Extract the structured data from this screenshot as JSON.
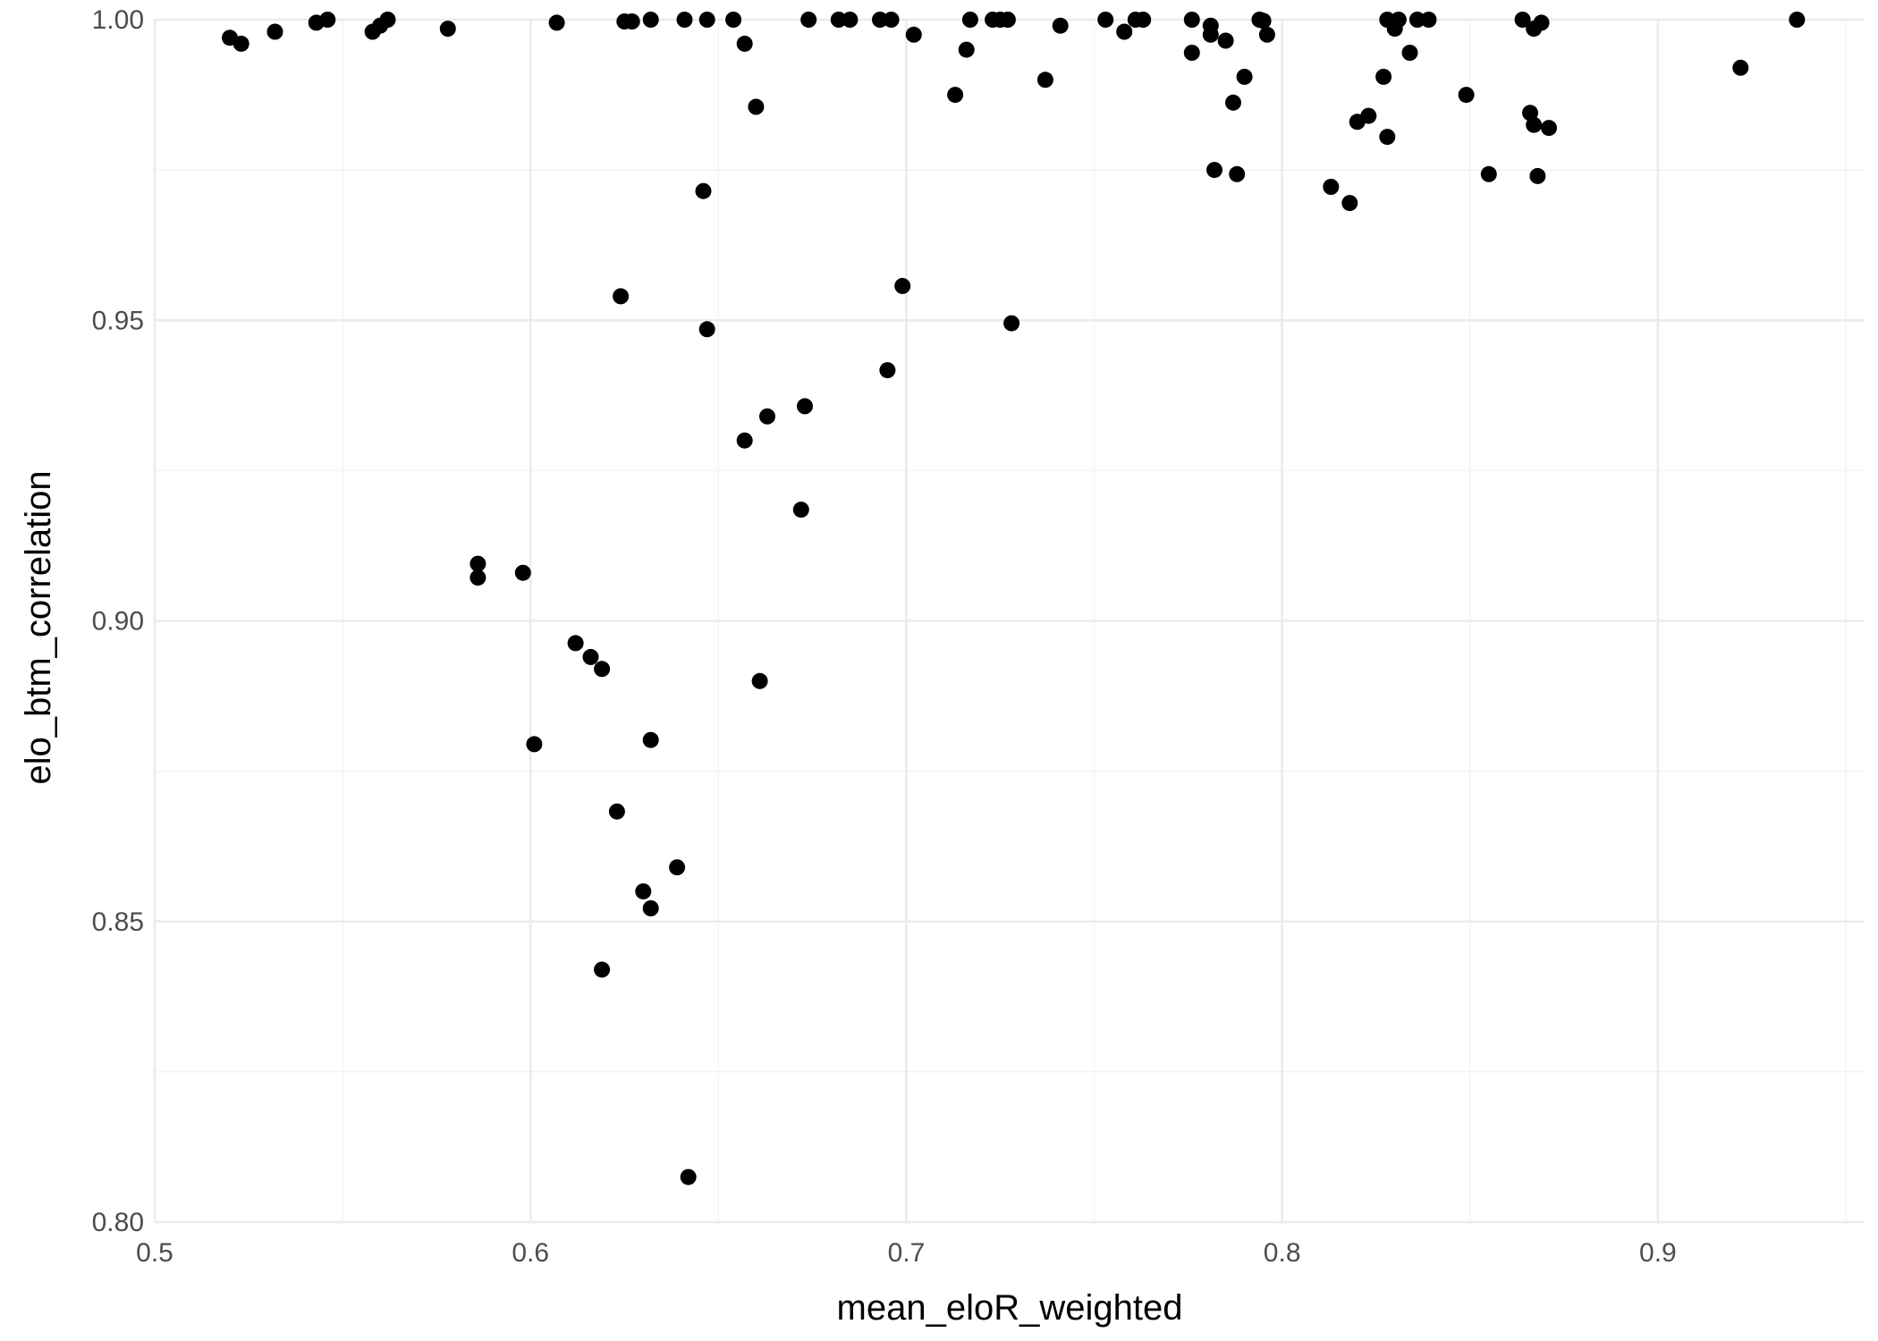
{
  "chart_data": {
    "type": "scatter",
    "title": "",
    "xlabel": "mean_eloR_weighted",
    "ylabel": "elo_btm_correlation",
    "xlim": [
      0.5,
      0.955
    ],
    "ylim": [
      0.8,
      1.0
    ],
    "x_ticks": [
      0.5,
      0.6,
      0.7,
      0.8,
      0.9
    ],
    "x_tick_labels": [
      "0.5",
      "0.6",
      "0.7",
      "0.8",
      "0.9"
    ],
    "y_ticks": [
      0.8,
      0.85,
      0.9,
      0.95,
      1.0
    ],
    "y_tick_labels": [
      "0.80",
      "0.85",
      "0.90",
      "0.95",
      "1.00"
    ],
    "grid": true,
    "legend": "none",
    "point_color": "#000000",
    "points": [
      [
        0.52,
        0.997
      ],
      [
        0.523,
        0.996
      ],
      [
        0.532,
        0.998
      ],
      [
        0.543,
        0.9995
      ],
      [
        0.546,
        1.0
      ],
      [
        0.558,
        0.998
      ],
      [
        0.56,
        0.999
      ],
      [
        0.562,
        1.0
      ],
      [
        0.578,
        0.9985
      ],
      [
        0.607,
        0.9995
      ],
      [
        0.625,
        0.9997
      ],
      [
        0.627,
        0.9997
      ],
      [
        0.632,
        1.0
      ],
      [
        0.641,
        1.0
      ],
      [
        0.647,
        1.0
      ],
      [
        0.654,
        1.0
      ],
      [
        0.657,
        0.996
      ],
      [
        0.66,
        0.9855
      ],
      [
        0.674,
        1.0
      ],
      [
        0.682,
        1.0
      ],
      [
        0.685,
        1.0
      ],
      [
        0.693,
        1.0
      ],
      [
        0.696,
        1.0
      ],
      [
        0.702,
        0.9975
      ],
      [
        0.713,
        0.9875
      ],
      [
        0.716,
        0.995
      ],
      [
        0.717,
        1.0
      ],
      [
        0.723,
        1.0
      ],
      [
        0.725,
        1.0
      ],
      [
        0.727,
        1.0
      ],
      [
        0.737,
        0.99
      ],
      [
        0.741,
        0.999
      ],
      [
        0.753,
        1.0
      ],
      [
        0.758,
        0.998
      ],
      [
        0.761,
        1.0
      ],
      [
        0.763,
        1.0
      ],
      [
        0.776,
        1.0
      ],
      [
        0.776,
        0.9945
      ],
      [
        0.781,
        0.999
      ],
      [
        0.781,
        0.9975
      ],
      [
        0.782,
        0.975
      ],
      [
        0.785,
        0.9965
      ],
      [
        0.787,
        0.9862
      ],
      [
        0.788,
        0.9743
      ],
      [
        0.79,
        0.9905
      ],
      [
        0.794,
        1.0
      ],
      [
        0.795,
        0.9998
      ],
      [
        0.796,
        0.9975
      ],
      [
        0.813,
        0.9722
      ],
      [
        0.818,
        0.9695
      ],
      [
        0.82,
        0.983
      ],
      [
        0.823,
        0.984
      ],
      [
        0.827,
        0.9905
      ],
      [
        0.828,
        0.9805
      ],
      [
        0.828,
        1.0
      ],
      [
        0.83,
        0.9985
      ],
      [
        0.831,
        1.0
      ],
      [
        0.834,
        0.9945
      ],
      [
        0.836,
        1.0
      ],
      [
        0.839,
        1.0
      ],
      [
        0.849,
        0.9875
      ],
      [
        0.855,
        0.9743
      ],
      [
        0.864,
        1.0
      ],
      [
        0.866,
        0.9845
      ],
      [
        0.867,
        0.9825
      ],
      [
        0.867,
        0.9985
      ],
      [
        0.868,
        0.974
      ],
      [
        0.869,
        0.9995
      ],
      [
        0.871,
        0.982
      ],
      [
        0.922,
        0.992
      ],
      [
        0.937,
        1.0
      ],
      [
        0.646,
        0.9715
      ],
      [
        0.624,
        0.954
      ],
      [
        0.647,
        0.9485
      ],
      [
        0.699,
        0.9557
      ],
      [
        0.728,
        0.9495
      ],
      [
        0.695,
        0.9417
      ],
      [
        0.673,
        0.9357
      ],
      [
        0.663,
        0.934
      ],
      [
        0.657,
        0.93
      ],
      [
        0.672,
        0.9185
      ],
      [
        0.586,
        0.9095
      ],
      [
        0.586,
        0.9072
      ],
      [
        0.598,
        0.908
      ],
      [
        0.612,
        0.8963
      ],
      [
        0.616,
        0.894
      ],
      [
        0.619,
        0.892
      ],
      [
        0.661,
        0.89
      ],
      [
        0.601,
        0.8795
      ],
      [
        0.632,
        0.8802
      ],
      [
        0.623,
        0.8683
      ],
      [
        0.639,
        0.859
      ],
      [
        0.63,
        0.855
      ],
      [
        0.632,
        0.8522
      ],
      [
        0.619,
        0.842
      ],
      [
        0.642,
        0.8075
      ]
    ]
  }
}
